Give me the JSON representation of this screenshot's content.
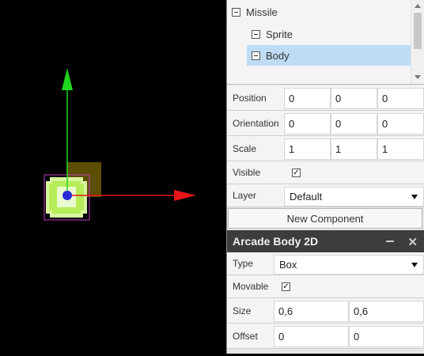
{
  "tree": {
    "items": [
      {
        "label": "Missile",
        "selected": false
      },
      {
        "label": "Sprite",
        "selected": false
      },
      {
        "label": "Body",
        "selected": true
      }
    ]
  },
  "properties": {
    "position": {
      "label": "Position",
      "x": "0",
      "y": "0",
      "z": "0"
    },
    "orientation": {
      "label": "Orientation",
      "x": "0",
      "y": "0",
      "z": "0"
    },
    "scale": {
      "label": "Scale",
      "x": "1",
      "y": "1",
      "z": "1"
    },
    "visible": {
      "label": "Visible",
      "checked": true
    },
    "layer": {
      "label": "Layer",
      "value": "Default"
    }
  },
  "new_component_label": "New Component",
  "component": {
    "title": "Arcade Body 2D",
    "type": {
      "label": "Type",
      "value": "Box"
    },
    "movable": {
      "label": "Movable",
      "checked": true
    },
    "size": {
      "label": "Size",
      "x": "0,6",
      "y": "0,6"
    },
    "offset": {
      "label": "Offset",
      "x": "0",
      "y": "0"
    }
  },
  "colors": {
    "selection": "#bfdcf5",
    "gizmo_x": "#e8151a",
    "gizmo_y": "#1ed61e",
    "header_bg": "#3d3d3d"
  },
  "icons": [
    "minimize-icon",
    "close-icon",
    "check-icon",
    "caret-down-icon"
  ]
}
